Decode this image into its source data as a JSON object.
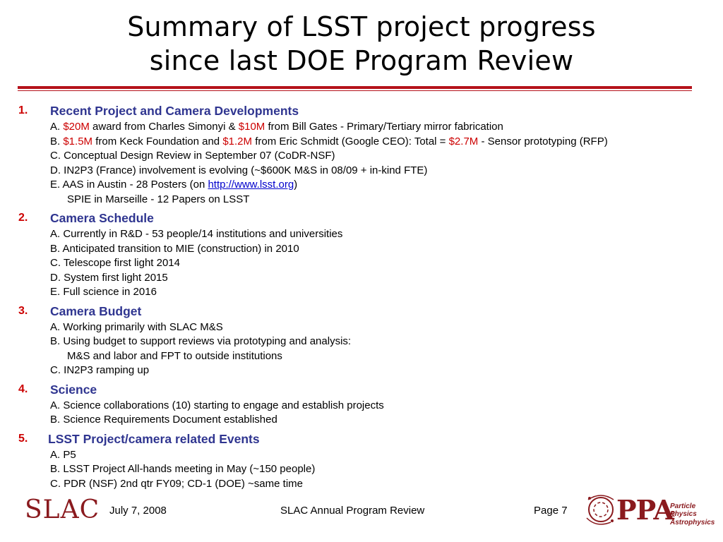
{
  "title": {
    "line1": "Summary of LSST project progress",
    "line2": "since last DOE Program Review"
  },
  "sections": [
    {
      "num": "1.",
      "heading": "Recent Project and Camera Developments",
      "items": [
        {
          "t1": "A.  ",
          "m1": "$20M",
          "t2": " award from Charles Simonyi & ",
          "m2": "$10M",
          "t3": " from Bill Gates - Primary/Tertiary mirror fabrication"
        },
        {
          "t1": "B.  ",
          "m1": "$1.5M",
          "t2": " from Keck Foundation and ",
          "m2": "$1.2M",
          "t3": " from Eric Schmidt (Google CEO): Total = ",
          "m3": "$2.7M",
          "t4": " - Sensor prototyping (RFP)"
        },
        {
          "t1": "C.  Conceptual Design Review in September 07 (CoDR-NSF)"
        },
        {
          "t1": "D.  IN2P3 (France) involvement is evolving (~$600K M&S in 08/09 + in-kind FTE)"
        },
        {
          "t1": "E.  AAS in Austin - 28 Posters (on ",
          "link": "http://www.lsst.org",
          "t2": ")"
        },
        {
          "t1": "SPIE in Marseille - 12 Papers on LSST"
        }
      ]
    },
    {
      "num": "2.",
      "heading": "Camera Schedule",
      "items": [
        "A.  Currently in R&D - 53 people/14 institutions and universities",
        "B.  Anticipated transition to MIE (construction) in 2010",
        "C.  Telescope first light 2014",
        "D.  System first light 2015",
        "E.  Full science in 2016"
      ]
    },
    {
      "num": "3.",
      "heading": "Camera Budget",
      "items": [
        "A. Working primarily with SLAC M&S",
        "B. Using budget to support reviews via prototyping and analysis:",
        "M&S and labor and FPT to outside institutions",
        "C.  IN2P3 ramping up"
      ]
    },
    {
      "num": "4.",
      "heading": "Science",
      "items": [
        "A.  Science collaborations (10) starting to engage and establish projects",
        "B.  Science Requirements Document established"
      ]
    },
    {
      "num": "5.",
      "heading": "LSST Project/camera related Events",
      "items": [
        "A.  P5",
        "B.  LSST Project All-hands meeting in May (~150 people)",
        "C.  PDR (NSF) 2nd qtr FY09; CD-1 (DOE) ~same time"
      ]
    }
  ],
  "footer": {
    "logo_left": "SLAC",
    "date": "July 7, 2008",
    "event": "SLAC Annual Program Review",
    "page": "Page 7",
    "logo_right": {
      "letters": "PPA",
      "line1": "Particle Physics",
      "line2": "& Astrophysics"
    }
  },
  "colors": {
    "rule": "#b5121b",
    "heading": "#2f3590",
    "number": "#cc0000",
    "money": "#cc0000",
    "logo": "#8a1a1e"
  }
}
